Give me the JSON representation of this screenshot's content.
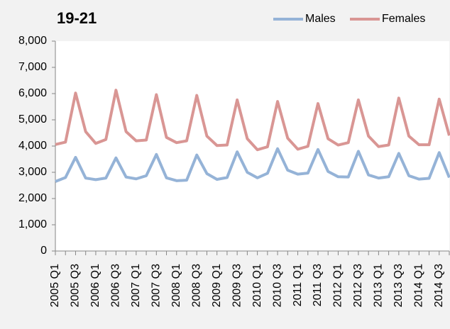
{
  "chart_data": {
    "type": "line",
    "title": "19-21",
    "categories": [
      "2005 Q1",
      null,
      "2005 Q3",
      null,
      "2006 Q1",
      null,
      "2006 Q3",
      null,
      "2007 Q1",
      null,
      "2007 Q3",
      null,
      "2008 Q1",
      null,
      "2008 Q3",
      null,
      "2009 Q1",
      null,
      "2009 Q3",
      null,
      "2010 Q1",
      null,
      "2010 Q3",
      null,
      "2011 Q1",
      null,
      "2011 Q3",
      null,
      "2012 Q1",
      null,
      "2012 Q3",
      null,
      "2013 Q1",
      null,
      "2013 Q3",
      null,
      "2014 Q1",
      null,
      "2014 Q3",
      null
    ],
    "series": [
      {
        "name": "Males",
        "color": "#95b3d7",
        "values": [
          2650,
          2800,
          3570,
          2780,
          2720,
          2780,
          3550,
          2820,
          2750,
          2870,
          3680,
          2790,
          2680,
          2700,
          3660,
          2950,
          2730,
          2800,
          3780,
          3000,
          2790,
          2960,
          3900,
          3080,
          2930,
          2970,
          3870,
          3030,
          2830,
          2820,
          3800,
          2900,
          2780,
          2830,
          3720,
          2870,
          2740,
          2770,
          3750,
          2800
        ]
      },
      {
        "name": "Females",
        "color": "#d99694",
        "values": [
          4060,
          4150,
          6020,
          4550,
          4100,
          4250,
          6130,
          4550,
          4200,
          4230,
          5960,
          4330,
          4130,
          4200,
          5930,
          4380,
          4020,
          4040,
          5760,
          4280,
          3860,
          3970,
          5700,
          4300,
          3880,
          3990,
          5620,
          4280,
          4040,
          4130,
          5760,
          4380,
          3980,
          4040,
          5830,
          4380,
          4050,
          4050,
          5790,
          4400
        ]
      }
    ],
    "ylim": [
      0,
      8000
    ],
    "yticks": [
      0,
      {
        "value": 1000,
        "label": "1,000"
      },
      {
        "value": 2000,
        "label": "2,000"
      },
      {
        "value": 3000,
        "label": "3,000"
      },
      {
        "value": 4000,
        "label": "4,000"
      },
      {
        "value": 5000,
        "label": "5,000"
      },
      {
        "value": 6000,
        "label": "6,000"
      },
      {
        "value": 7000,
        "label": "7,000"
      },
      {
        "value": 8000,
        "label": "8,000"
      }
    ],
    "grid": false,
    "legend": "top-right"
  }
}
